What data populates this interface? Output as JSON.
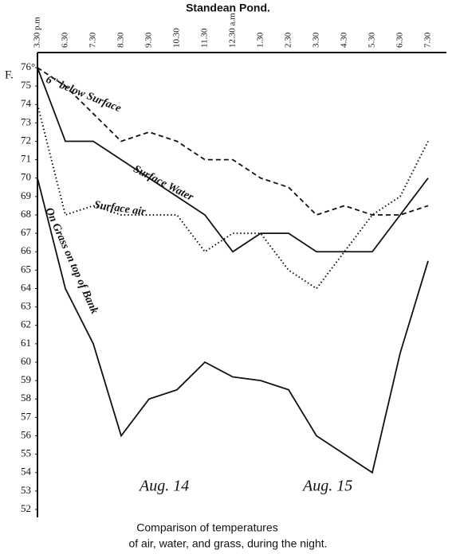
{
  "chart_data": {
    "type": "line",
    "title": "Standean Pond.",
    "caption": [
      "Comparison of temperatures",
      "of air, water, and grass, during the night."
    ],
    "y_label": "F.",
    "annotations": [
      "Aug. 14",
      "Aug. 15"
    ],
    "categories": [
      "3.30 p.m",
      "6.30",
      "7.30",
      "8.30",
      "9.30",
      "10.30",
      "11.30",
      "12.30 a.m",
      "1.30",
      "2.30",
      "3.30",
      "4.30",
      "5.30",
      "6.30",
      "7.30"
    ],
    "series": [
      {
        "name": "6\" below Surface",
        "color": "#111",
        "dash": "dashed",
        "values": [
          76,
          75,
          73.5,
          72,
          72.5,
          72,
          71,
          71,
          70,
          69.5,
          68,
          68.5,
          68,
          68,
          68.5
        ]
      },
      {
        "name": "Surface Water",
        "color": "#111",
        "dash": "solid",
        "values": [
          76,
          72,
          72,
          71,
          70,
          69,
          68,
          66,
          67,
          67,
          66,
          66,
          66,
          68,
          70
        ]
      },
      {
        "name": "Surface air",
        "color": "#111",
        "dash": "dotted",
        "values": [
          74,
          68,
          68.5,
          68,
          68,
          68,
          66,
          67,
          67,
          65,
          64,
          66,
          68,
          69,
          72
        ]
      },
      {
        "name": "On Grass on top of Bank",
        "color": "#111",
        "dash": "solid",
        "values": [
          70,
          64,
          61,
          56,
          58,
          58.5,
          60,
          59.2,
          59,
          58.5,
          56,
          55,
          54,
          60.5,
          65.5
        ]
      }
    ],
    "ylim": [
      52,
      76
    ],
    "yticks": [
      52,
      53,
      54,
      55,
      56,
      57,
      58,
      59,
      60,
      61,
      62,
      63,
      64,
      65,
      66,
      67,
      68,
      69,
      70,
      71,
      72,
      73,
      74,
      75,
      {
        "value": 76,
        "label": "76°"
      }
    ],
    "grid": false
  }
}
